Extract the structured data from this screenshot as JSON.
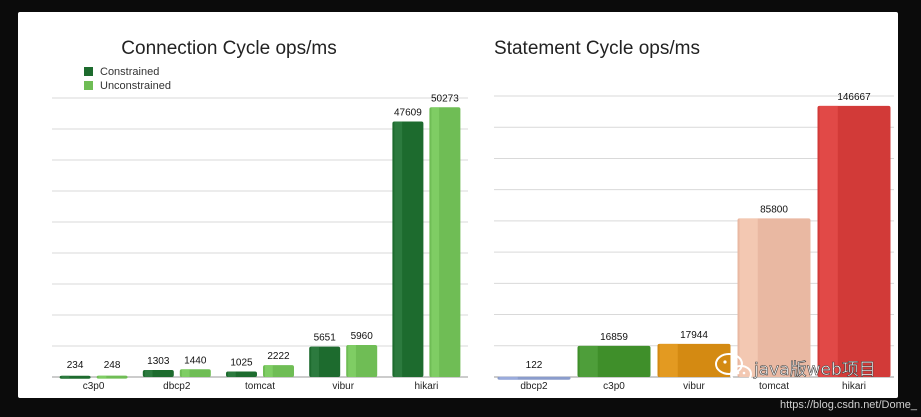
{
  "chart_data": [
    {
      "type": "bar",
      "title": "Connection Cycle ops/ms",
      "categories": [
        "c3p0",
        "dbcp2",
        "tomcat",
        "vibur",
        "hikari"
      ],
      "series": [
        {
          "name": "Constrained",
          "values": [
            234,
            1303,
            1025,
            5651,
            47609
          ],
          "color": "#1d6b2e"
        },
        {
          "name": "Unconstrained",
          "values": [
            248,
            1440,
            2222,
            5960,
            50273
          ],
          "color": "#6fbd55"
        }
      ],
      "ylim": [
        0,
        52000
      ],
      "grid": true,
      "legend": "top-left"
    },
    {
      "type": "bar",
      "title": "Statement Cycle ops/ms",
      "categories": [
        "dbcp2",
        "c3p0",
        "vibur",
        "tomcat",
        "hikari"
      ],
      "values": [
        122,
        16859,
        17944,
        85800,
        146667
      ],
      "colors": [
        "#8a9ccc",
        "#3f8f2a",
        "#d48a12",
        "#e9b8a2",
        "#d23a38"
      ],
      "ylim": [
        0,
        152000
      ],
      "grid": true
    }
  ],
  "watermark": {
    "icon": "wechat-icon",
    "text": "java版web项目",
    "footer": "https://blog.csdn.net/Dome_"
  }
}
